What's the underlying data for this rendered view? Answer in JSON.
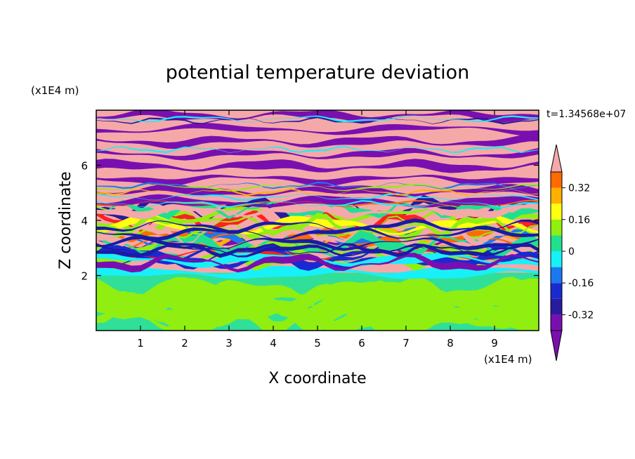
{
  "chart_data": {
    "type": "heatmap",
    "title": "potential temperature deviation",
    "xlabel": "X coordinate",
    "ylabel": "Z coordinate",
    "x_unit": "(x1E4 m)",
    "y_unit": "(x1E4 m)",
    "time_label": "t=1.34568e+07",
    "xlim": [
      0,
      10
    ],
    "ylim": [
      0,
      8
    ],
    "x_ticks": [
      "1",
      "2",
      "3",
      "4",
      "5",
      "6",
      "7",
      "8",
      "9"
    ],
    "y_ticks": [
      "2",
      "4",
      "6"
    ],
    "colorbar": {
      "levels": [
        -0.4,
        -0.32,
        -0.24,
        -0.16,
        -0.08,
        0,
        0.08,
        0.16,
        0.24,
        0.32,
        0.4
      ],
      "labels": [
        "0.32",
        "0.16",
        "0",
        "-0.16",
        "-0.32"
      ],
      "colors": [
        "#7a0fb0",
        "#2a1aa0",
        "#1a2ad0",
        "#1c78f0",
        "#18f0f8",
        "#20e090",
        "#90ee10",
        "#ffff10",
        "#ffb000",
        "#ff6a00",
        "#ff2020",
        "#f5a8a8"
      ]
    },
    "regions": [
      {
        "z_range": [
          0,
          2.0
        ],
        "pattern": "green and light-green blobs (near-zero deviation)"
      },
      {
        "z_range": [
          2.0,
          2.4
        ],
        "pattern": "cyan band"
      },
      {
        "z_range": [
          2.4,
          4.5
        ],
        "pattern": "mixed multicolor waves"
      },
      {
        "z_range": [
          4.5,
          8.0
        ],
        "pattern": "alternating pink and purple layers"
      }
    ]
  }
}
